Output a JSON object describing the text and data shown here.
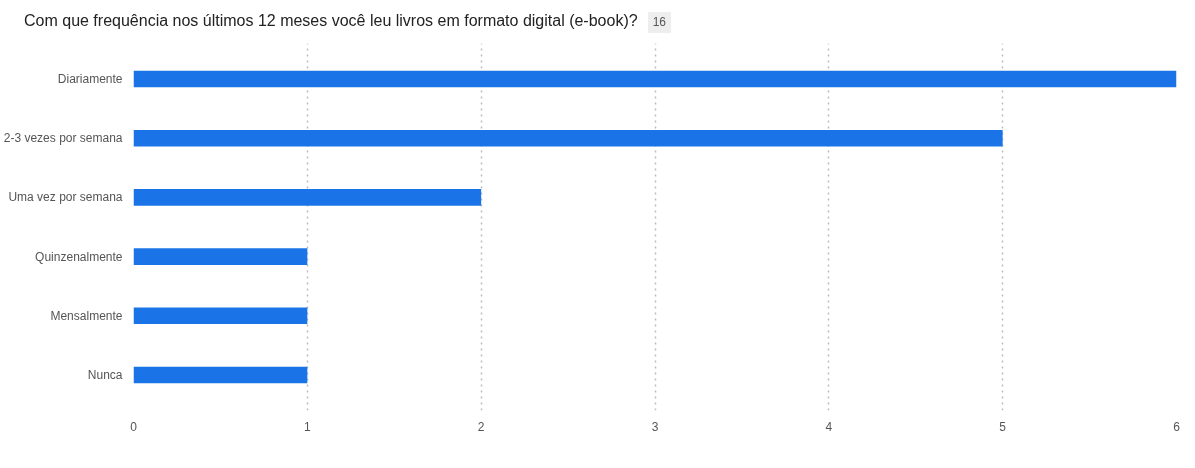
{
  "chart_data": {
    "type": "bar",
    "orientation": "horizontal",
    "title": "Com que frequência nos últimos 12 meses você leu livros em formato digital (e-book)?",
    "subtitle": "16",
    "categories": [
      "Diariamente",
      "2-3 vezes por semana",
      "Uma vez por semana",
      "Quinzenalmente",
      "Mensalmente",
      "Nunca"
    ],
    "values": [
      6,
      5,
      2,
      1,
      1,
      1
    ],
    "color": "#1a74e8",
    "xlim": [
      0,
      6
    ],
    "xticks": [
      0,
      1,
      2,
      3,
      4,
      5,
      6
    ],
    "grid": "x"
  }
}
